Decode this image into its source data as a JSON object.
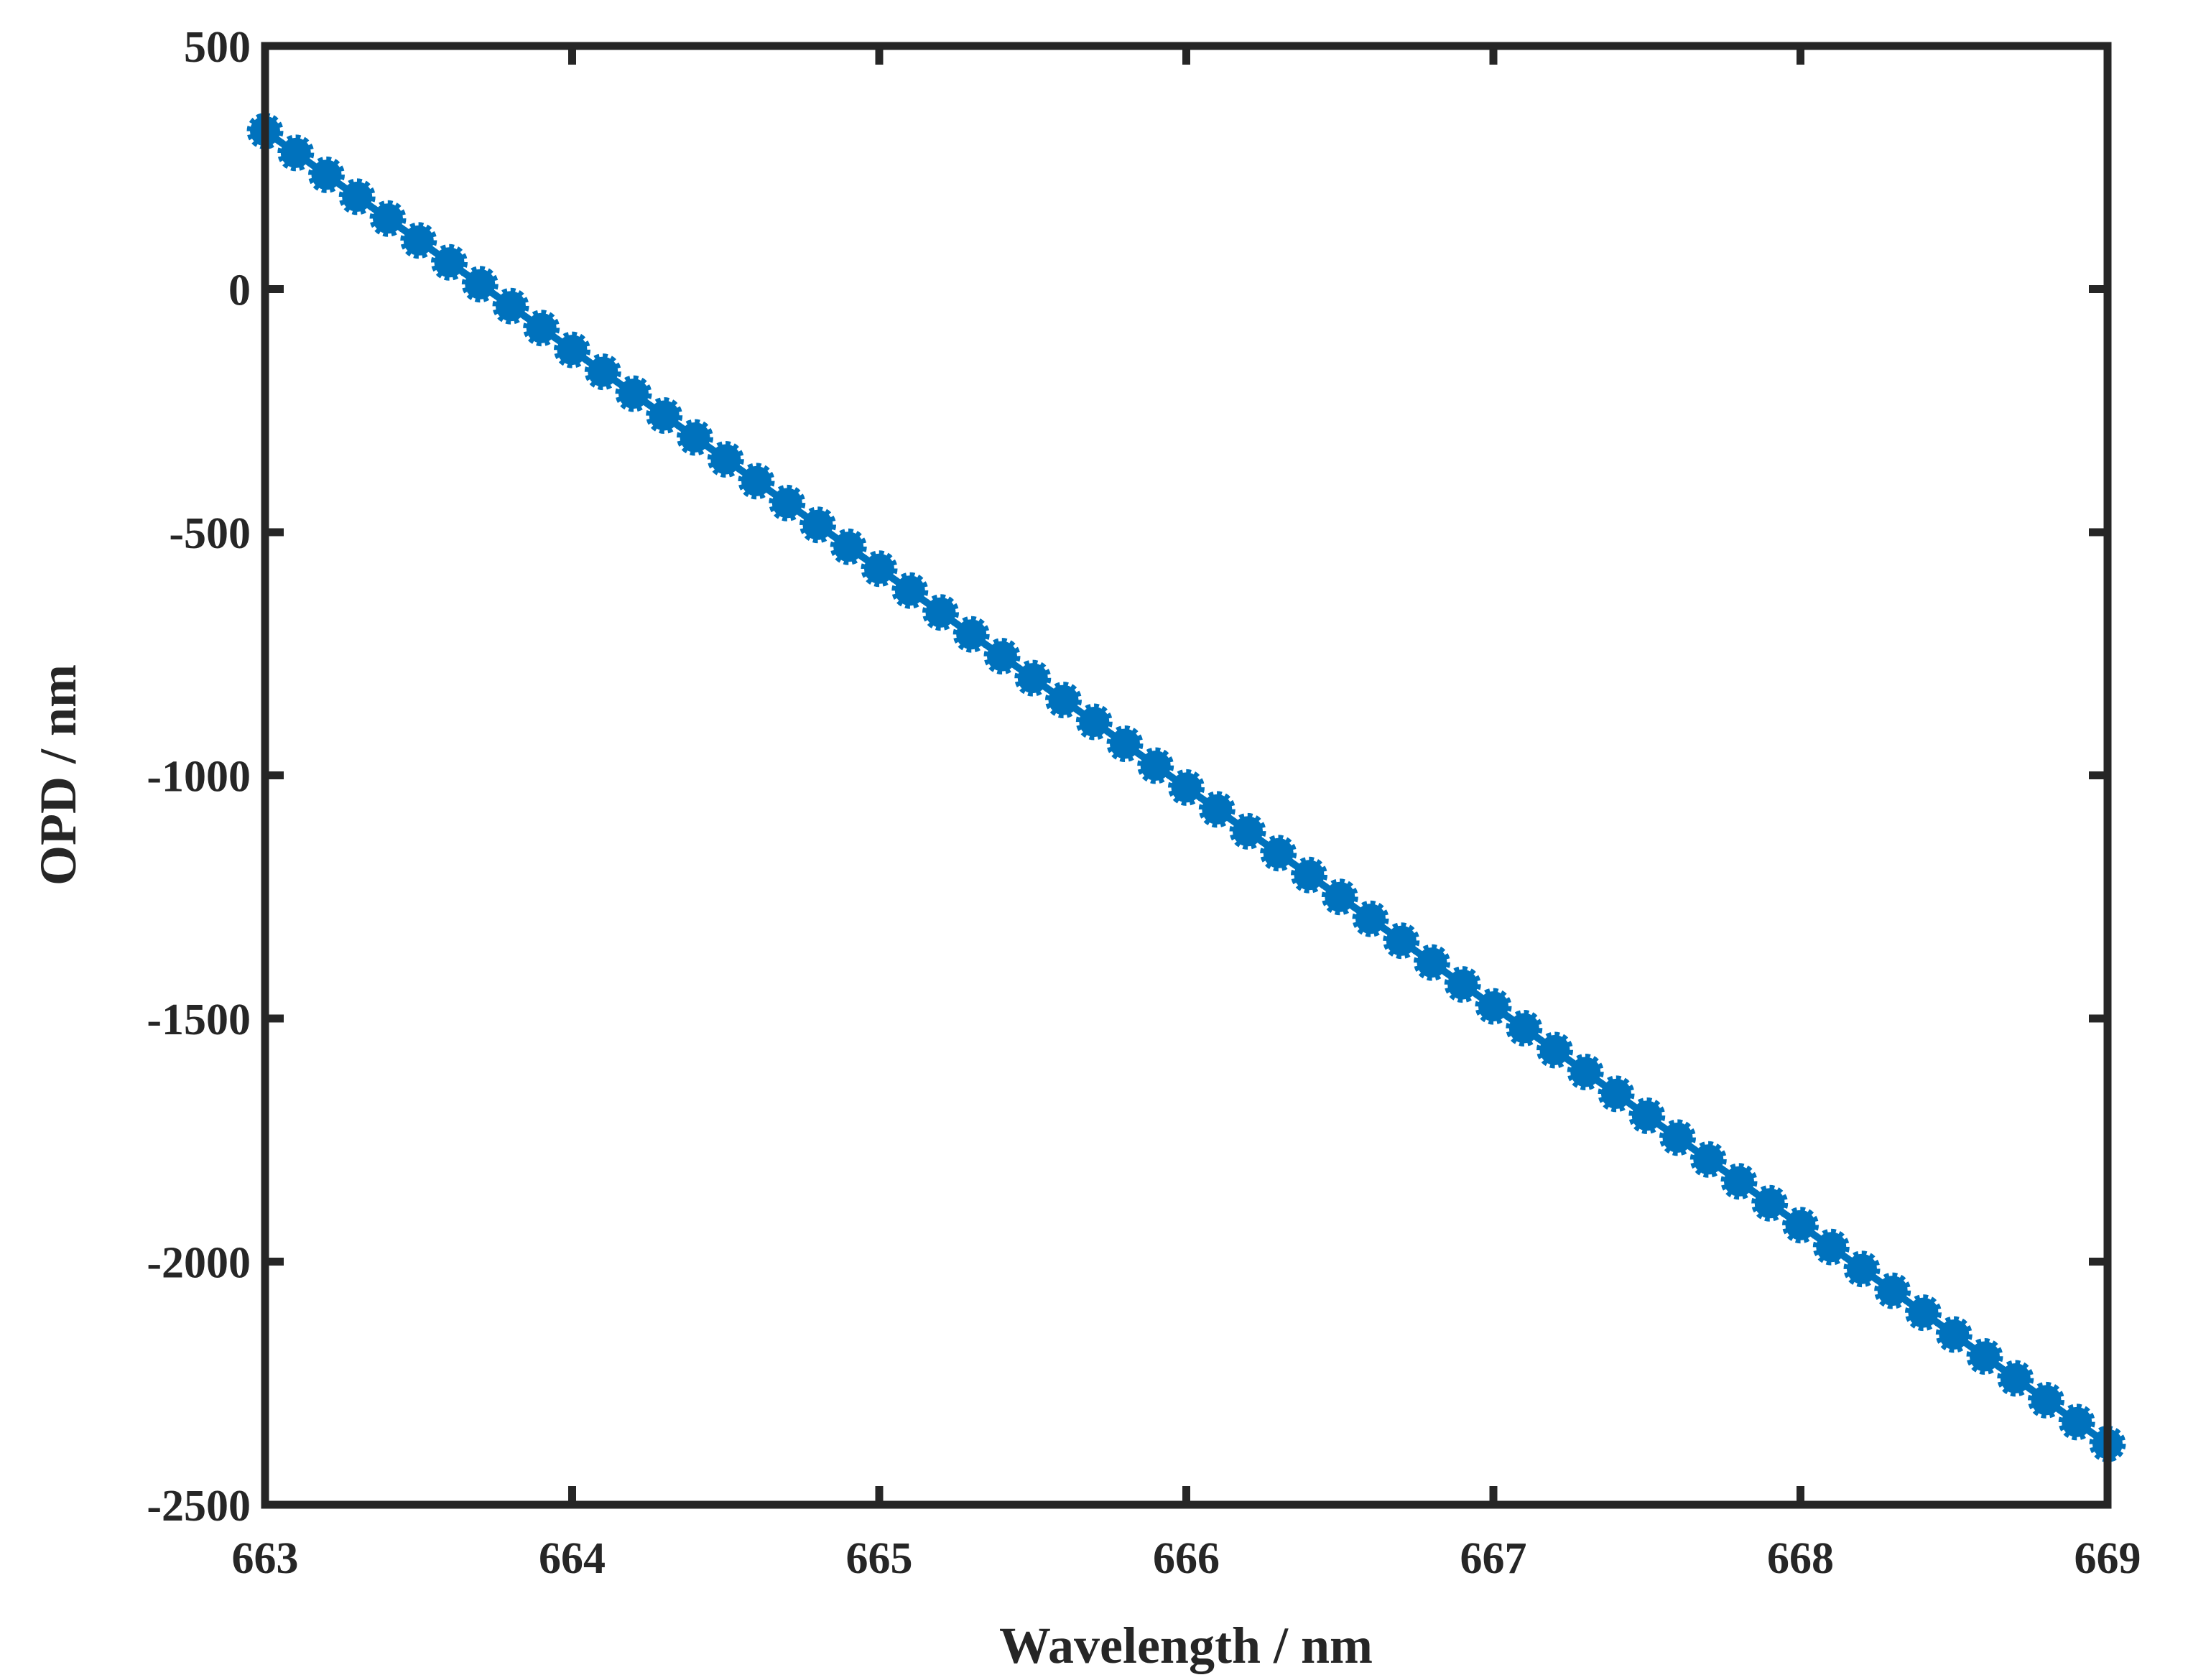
{
  "chart_data": {
    "type": "line",
    "title": "",
    "xlabel": "Wavelength / nm",
    "ylabel": "OPD / nm",
    "xlim": [
      663,
      669
    ],
    "ylim": [
      -2500,
      500
    ],
    "xticks": [
      "663",
      "664",
      "665",
      "666",
      "667",
      "668",
      "669"
    ],
    "yticks": [
      "500",
      "0",
      "-500",
      "-1000",
      "-1500",
      "-2000",
      "-2500"
    ],
    "grid": false,
    "legend": "none",
    "series": [
      {
        "color": "#0072BD",
        "marker": "filled-circle",
        "line": "solid",
        "x_start": 663,
        "x_end": 669,
        "x_step": 0.1,
        "y_at_x_start": 325,
        "y_at_x_end": -2375
      }
    ],
    "axis_color": "#262626"
  }
}
